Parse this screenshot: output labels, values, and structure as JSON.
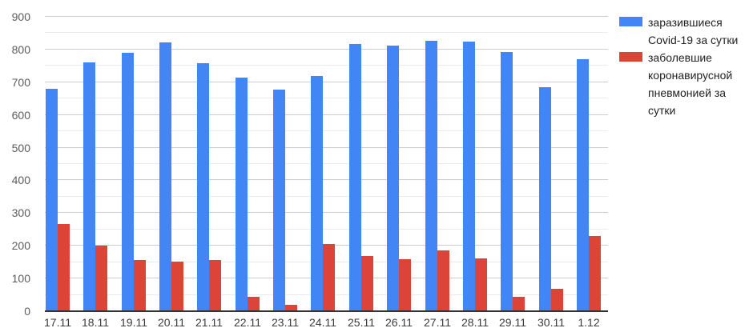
{
  "chart_data": {
    "type": "bar",
    "title": "",
    "categories": [
      "17.11",
      "18.11",
      "19.11",
      "20.11",
      "21.11",
      "22.11",
      "23.11",
      "24.11",
      "25.11",
      "26.11",
      "27.11",
      "28.11",
      "29.11",
      "30.11",
      "1.12"
    ],
    "series": [
      {
        "name": "заразившиеся Covid-19 за сутки",
        "color": "#4285f4",
        "values": [
          681,
          761,
          791,
          822,
          757,
          714,
          678,
          719,
          818,
          811,
          826,
          825,
          792,
          686,
          770
        ]
      },
      {
        "name": "заболевшие коронавирусной пневмонией за сутки",
        "color": "#db4437",
        "values": [
          267,
          201,
          157,
          152,
          157,
          43,
          19,
          206,
          168,
          160,
          185,
          162,
          43,
          68,
          230
        ]
      }
    ],
    "ylim": [
      0,
      900
    ],
    "yticks": [
      0,
      100,
      200,
      300,
      400,
      500,
      600,
      700,
      800,
      900
    ],
    "minor_grid_step": 50,
    "grid": true,
    "legend_position": "right"
  },
  "colors": {
    "grid_major": "#cccccc",
    "grid_minor": "#ebebeb",
    "axis_line": "#333333",
    "y_label": "#5c5c5c",
    "x_label": "#3b3b3b",
    "legend_text": "#222222",
    "background": "#ffffff"
  }
}
